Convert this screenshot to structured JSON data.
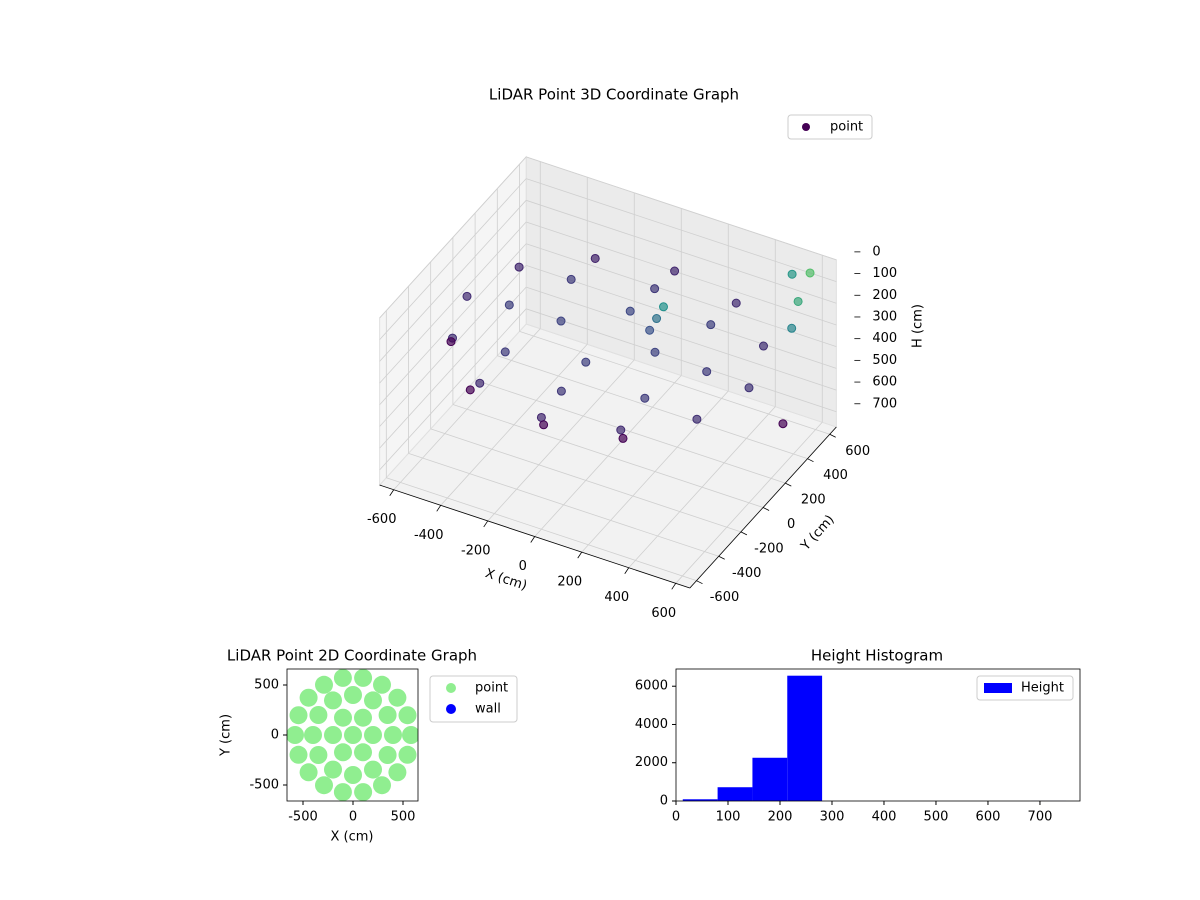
{
  "chart_data": [
    {
      "type": "scatter3d",
      "title": "LiDAR Point 3D Coordinate Graph",
      "x_label": "X (cm)",
      "y_label": "Y (cm)",
      "z_label": "H (cm)",
      "xlim": [
        -660,
        660
      ],
      "ylim": [
        -660,
        660
      ],
      "zlim": [
        0,
        770
      ],
      "z_inverted": true,
      "xticks": [
        -600,
        -400,
        -200,
        0,
        200,
        400,
        600
      ],
      "yticks": [
        -600,
        -400,
        -200,
        0,
        200,
        400,
        600
      ],
      "zticks": [
        0,
        100,
        200,
        300,
        400,
        500,
        600,
        700
      ],
      "grid": true,
      "legend": "upper right",
      "colormap": [
        "#440154",
        "#3b528b",
        "#21918c",
        "#5ec962"
      ],
      "clim": [
        300,
        0
      ],
      "series": [
        {
          "name": "point",
          "color": "#440154",
          "x": [
            600,
            520,
            300,
            0,
            -300,
            -520,
            -600,
            -520,
            -300,
            0,
            300,
            520,
            420,
            297,
            0,
            -297,
            -420,
            -297,
            0,
            297,
            200,
            0,
            -200,
            0,
            150,
            170,
            130,
            600,
            620,
            500,
            640,
            650,
            -550,
            -350,
            0,
            300
          ],
          "y": [
            0,
            300,
            520,
            600,
            520,
            300,
            0,
            -300,
            -520,
            -600,
            -520,
            -300,
            0,
            297,
            420,
            297,
            0,
            -297,
            -420,
            -297,
            0,
            200,
            0,
            -200,
            120,
            140,
            100,
            550,
            400,
            600,
            300,
            200,
            -250,
            -500,
            -580,
            -500
          ],
          "h": [
            240,
            245,
            250,
            255,
            260,
            255,
            250,
            245,
            250,
            255,
            250,
            245,
            230,
            225,
            235,
            230,
            225,
            230,
            235,
            230,
            220,
            215,
            220,
            225,
            150,
            100,
            200,
            20,
            60,
            90,
            120,
            500,
            300,
            310,
            300,
            300
          ]
        }
      ]
    },
    {
      "type": "scatter",
      "title": "LiDAR Point 2D Coordinate Graph",
      "x_label": "X (cm)",
      "y_label": "Y (cm)",
      "xlim": [
        -660,
        650
      ],
      "ylim": [
        -660,
        660
      ],
      "xticks": [
        -500,
        0,
        500
      ],
      "yticks": [
        -500,
        0,
        500
      ],
      "legend": "outside right",
      "series": [
        {
          "name": "point",
          "color": "#90ee90",
          "x": [
            0,
            200,
            100,
            -100,
            -200,
            -100,
            100,
            400,
            346,
            200,
            0,
            -200,
            -346,
            -400,
            -346,
            -200,
            0,
            200,
            346,
            580,
            545,
            444,
            290,
            101,
            -101,
            -290,
            -444,
            -545,
            -580,
            -545,
            -444,
            -290,
            -101,
            101,
            290,
            444,
            545
          ],
          "y": [
            0,
            0,
            173,
            173,
            0,
            -173,
            -173,
            0,
            200,
            346,
            400,
            346,
            200,
            0,
            -200,
            -346,
            -400,
            -346,
            -200,
            0,
            198,
            373,
            502,
            571,
            571,
            502,
            373,
            198,
            0,
            -198,
            -373,
            -502,
            -571,
            -571,
            -502,
            -373,
            -198
          ]
        },
        {
          "name": "wall",
          "color": "#0000ff",
          "x": [],
          "y": []
        }
      ]
    },
    {
      "type": "histogram",
      "title": "Height Histogram",
      "bins": [
        13,
        80,
        147,
        214,
        281,
        348,
        415,
        482,
        549,
        616,
        683,
        750
      ],
      "series": [
        {
          "name": "Height",
          "color": "#0000ff",
          "values": [
            90,
            720,
            2260,
            6550,
            0,
            0,
            0,
            0,
            0,
            0,
            3
          ]
        }
      ],
      "xlim": [
        0,
        777
      ],
      "ylim": [
        0,
        6900
      ],
      "xticks": [
        0,
        100,
        200,
        300,
        400,
        500,
        600,
        700
      ],
      "yticks": [
        0,
        2000,
        4000,
        6000
      ],
      "legend": "upper right"
    }
  ]
}
